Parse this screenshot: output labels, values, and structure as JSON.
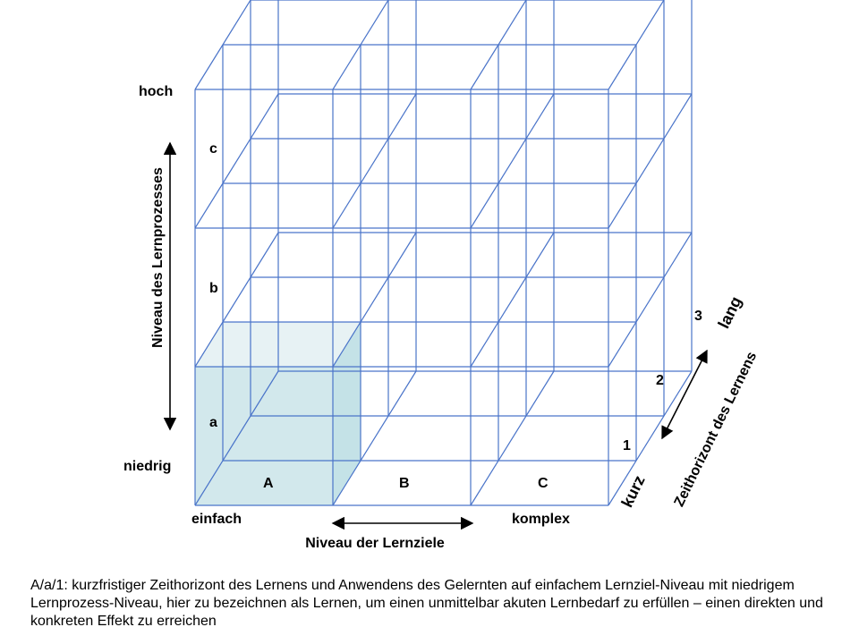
{
  "diagram": {
    "colors": {
      "grid_line": "#4a74c9",
      "highlight_front": "#cde6ea",
      "highlight_top": "#e4f1f3",
      "highlight_side": "#bedfe4",
      "arrow": "#000000",
      "text": "#000000"
    },
    "vertical_axis": {
      "title": "Niveau des Lernprozesses",
      "top_label": "hoch",
      "bottom_label": "niedrig"
    },
    "horizontal_axis": {
      "title": "Niveau der Lernziele",
      "left_label": "einfach",
      "right_label": "komplex"
    },
    "depth_axis": {
      "title": "Zeithorizont des Lernens",
      "near_label": "kurz",
      "far_label": "lang"
    },
    "row_labels": [
      "c",
      "b",
      "a"
    ],
    "column_labels": [
      "A",
      "B",
      "C"
    ],
    "depth_labels": [
      "1",
      "2",
      "3"
    ],
    "highlighted_cell": {
      "column": "A",
      "row": "a",
      "depth": "1"
    }
  },
  "caption": "A/a/1: kurzfristiger Zeithorizont des Lernens und Anwendens des Gelernten auf einfachem Lernziel-Niveau mit niedrigem Lernprozess-Niveau, hier zu bezeichnen als Lernen, um einen unmittelbar akuten Lernbedarf zu erfüllen – einen direkten und konkreten Effekt zu erreichen"
}
